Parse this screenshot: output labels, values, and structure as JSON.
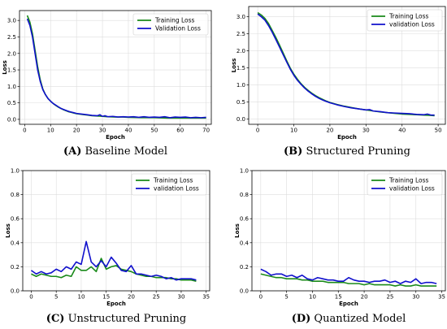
{
  "colors": {
    "training": "#1a8a1a",
    "validation": "#1010cc",
    "grid": "#dddddd",
    "frame": "#000000"
  },
  "chart_data": [
    {
      "type": "line",
      "caption_letter": "(A)",
      "caption_text": " Baseline Model",
      "xlabel": "Epoch",
      "ylabel": "Loss",
      "xlim": [
        -2,
        72
      ],
      "ylim": [
        -0.15,
        3.3
      ],
      "xticks": [
        0,
        10,
        20,
        30,
        40,
        50,
        60,
        70
      ],
      "yticks": [
        0.0,
        0.5,
        1.0,
        1.5,
        2.0,
        2.5,
        3.0
      ],
      "ytick_labels": [
        "0.0",
        "0.5",
        "1.0",
        "1.5",
        "2.0",
        "2.5",
        "3.0"
      ],
      "legend_position": "top-right",
      "grid": true,
      "series": [
        {
          "name": "Training Loss",
          "color_key": "training",
          "x": [
            1,
            2,
            3,
            4,
            5,
            6,
            7,
            8,
            9,
            10,
            11,
            12,
            13,
            14,
            15,
            16,
            17,
            18,
            19,
            20,
            22,
            24,
            26,
            28,
            30,
            32,
            35,
            38,
            40,
            45,
            50,
            55,
            60,
            65,
            70
          ],
          "y": [
            3.15,
            2.95,
            2.6,
            2.1,
            1.6,
            1.2,
            0.92,
            0.75,
            0.63,
            0.55,
            0.48,
            0.42,
            0.37,
            0.33,
            0.29,
            0.26,
            0.23,
            0.21,
            0.19,
            0.17,
            0.15,
            0.13,
            0.11,
            0.1,
            0.09,
            0.08,
            0.07,
            0.07,
            0.06,
            0.05,
            0.05,
            0.04,
            0.04,
            0.04,
            0.04
          ]
        },
        {
          "name": "Validation Loss",
          "color_key": "validation",
          "x": [
            1,
            2,
            3,
            4,
            5,
            6,
            7,
            8,
            9,
            10,
            11,
            12,
            13,
            14,
            15,
            16,
            17,
            18,
            19,
            20,
            22,
            24,
            26,
            28,
            29,
            30,
            31,
            32,
            34,
            36,
            38,
            40,
            42,
            44,
            46,
            48,
            50,
            52,
            54,
            56,
            58,
            60,
            62,
            64,
            66,
            68,
            70
          ],
          "y": [
            3.05,
            2.85,
            2.5,
            2.0,
            1.5,
            1.15,
            0.9,
            0.75,
            0.63,
            0.55,
            0.48,
            0.43,
            0.38,
            0.33,
            0.3,
            0.27,
            0.24,
            0.22,
            0.2,
            0.18,
            0.16,
            0.14,
            0.12,
            0.11,
            0.14,
            0.09,
            0.11,
            0.08,
            0.09,
            0.07,
            0.08,
            0.07,
            0.08,
            0.06,
            0.08,
            0.06,
            0.07,
            0.06,
            0.08,
            0.05,
            0.07,
            0.06,
            0.07,
            0.05,
            0.06,
            0.05,
            0.06
          ]
        }
      ]
    },
    {
      "type": "line",
      "caption_letter": "(B)",
      "caption_text": " Structured Pruning",
      "xlabel": "Epoch",
      "ylabel": "Loss",
      "xlim": [
        -2.5,
        52
      ],
      "ylim": [
        -0.15,
        3.3
      ],
      "xticks": [
        0,
        10,
        20,
        30,
        40,
        50
      ],
      "yticks": [
        0.0,
        0.5,
        1.0,
        1.5,
        2.0,
        2.5,
        3.0
      ],
      "ytick_labels": [
        "0.0",
        "0.5",
        "1.0",
        "1.5",
        "2.0",
        "2.5",
        "3.0"
      ],
      "legend_position": "top-right",
      "grid": true,
      "series": [
        {
          "name": "Training Loss",
          "color_key": "training",
          "x": [
            0,
            1,
            2,
            3,
            4,
            5,
            6,
            7,
            8,
            9,
            10,
            11,
            12,
            13,
            14,
            15,
            16,
            17,
            18,
            19,
            20,
            22,
            24,
            26,
            28,
            30,
            32,
            34,
            36,
            38,
            40,
            42,
            44,
            46,
            48,
            49
          ],
          "y": [
            3.12,
            3.05,
            2.95,
            2.8,
            2.6,
            2.4,
            2.18,
            1.95,
            1.72,
            1.5,
            1.32,
            1.17,
            1.04,
            0.93,
            0.84,
            0.76,
            0.69,
            0.63,
            0.58,
            0.53,
            0.49,
            0.43,
            0.38,
            0.34,
            0.3,
            0.27,
            0.24,
            0.21,
            0.19,
            0.17,
            0.15,
            0.14,
            0.13,
            0.12,
            0.11,
            0.1
          ]
        },
        {
          "name": "validation Loss",
          "color_key": "validation",
          "x": [
            0,
            1,
            2,
            3,
            4,
            5,
            6,
            7,
            8,
            9,
            10,
            11,
            12,
            13,
            14,
            15,
            16,
            17,
            18,
            19,
            20,
            22,
            24,
            26,
            28,
            30,
            31,
            32,
            34,
            36,
            38,
            40,
            42,
            44,
            46,
            47,
            48,
            49
          ],
          "y": [
            3.08,
            3.0,
            2.9,
            2.74,
            2.55,
            2.34,
            2.12,
            1.9,
            1.68,
            1.47,
            1.29,
            1.14,
            1.02,
            0.91,
            0.82,
            0.74,
            0.67,
            0.61,
            0.56,
            0.52,
            0.48,
            0.42,
            0.37,
            0.33,
            0.3,
            0.27,
            0.28,
            0.24,
            0.22,
            0.19,
            0.18,
            0.17,
            0.16,
            0.14,
            0.13,
            0.15,
            0.12,
            0.12
          ]
        }
      ]
    },
    {
      "type": "line",
      "caption_letter": "(C)",
      "caption_text": " Unstructured Pruning",
      "xlabel": "Epoch",
      "ylabel": "Loss",
      "xlim": [
        -1.7,
        35.7
      ],
      "ylim": [
        0.0,
        1.0
      ],
      "xticks": [
        0,
        5,
        10,
        15,
        20,
        25,
        30,
        35
      ],
      "yticks": [
        0.0,
        0.2,
        0.4,
        0.6,
        0.8,
        1.0
      ],
      "ytick_labels": [
        "0.0",
        "0.2",
        "0.4",
        "0.6",
        "0.8",
        "1.0"
      ],
      "legend_position": "top-right",
      "grid": true,
      "series": [
        {
          "name": "Training Loss",
          "color_key": "training",
          "x": [
            0,
            1,
            2,
            3,
            4,
            5,
            6,
            7,
            8,
            9,
            10,
            11,
            12,
            13,
            14,
            15,
            16,
            17,
            18,
            19,
            20,
            21,
            22,
            23,
            24,
            25,
            26,
            27,
            28,
            29,
            30,
            31,
            32,
            33
          ],
          "y": [
            0.14,
            0.12,
            0.14,
            0.13,
            0.12,
            0.12,
            0.11,
            0.13,
            0.12,
            0.2,
            0.17,
            0.17,
            0.2,
            0.16,
            0.27,
            0.18,
            0.2,
            0.21,
            0.18,
            0.17,
            0.16,
            0.14,
            0.13,
            0.12,
            0.12,
            0.11,
            0.11,
            0.11,
            0.1,
            0.1,
            0.09,
            0.09,
            0.09,
            0.08
          ]
        },
        {
          "name": "validation Loss",
          "color_key": "validation",
          "x": [
            0,
            1,
            2,
            3,
            4,
            5,
            6,
            7,
            8,
            9,
            10,
            11,
            12,
            13,
            14,
            15,
            16,
            17,
            18,
            19,
            20,
            21,
            22,
            23,
            24,
            25,
            26,
            27,
            28,
            29,
            30,
            31,
            32,
            33
          ],
          "y": [
            0.17,
            0.14,
            0.16,
            0.14,
            0.15,
            0.18,
            0.16,
            0.2,
            0.18,
            0.24,
            0.22,
            0.41,
            0.24,
            0.2,
            0.25,
            0.2,
            0.28,
            0.23,
            0.17,
            0.16,
            0.21,
            0.14,
            0.14,
            0.13,
            0.12,
            0.13,
            0.12,
            0.1,
            0.11,
            0.09,
            0.1,
            0.1,
            0.1,
            0.09
          ]
        }
      ]
    },
    {
      "type": "line",
      "caption_letter": "(D)",
      "caption_text": " Quantized Model",
      "xlabel": "Epoch",
      "ylabel": "Loss",
      "xlim": [
        -1.7,
        35.7
      ],
      "ylim": [
        0.0,
        1.0
      ],
      "xticks": [
        0,
        5,
        10,
        15,
        20,
        25,
        30,
        35
      ],
      "yticks": [
        0.0,
        0.2,
        0.4,
        0.6,
        0.8,
        1.0
      ],
      "ytick_labels": [
        "0.0",
        "0.2",
        "0.4",
        "0.6",
        "0.8",
        "1.0"
      ],
      "legend_position": "top-right",
      "grid": true,
      "series": [
        {
          "name": "Training Loss",
          "color_key": "training",
          "x": [
            0,
            1,
            2,
            3,
            4,
            5,
            6,
            7,
            8,
            9,
            10,
            11,
            12,
            13,
            14,
            15,
            16,
            17,
            18,
            19,
            20,
            21,
            22,
            23,
            24,
            25,
            26,
            27,
            28,
            29,
            30,
            31,
            32,
            33,
            34
          ],
          "y": [
            0.14,
            0.13,
            0.12,
            0.11,
            0.11,
            0.1,
            0.1,
            0.1,
            0.09,
            0.09,
            0.08,
            0.08,
            0.08,
            0.07,
            0.07,
            0.07,
            0.07,
            0.06,
            0.06,
            0.06,
            0.05,
            0.06,
            0.05,
            0.05,
            0.05,
            0.05,
            0.04,
            0.05,
            0.04,
            0.04,
            0.05,
            0.04,
            0.04,
            0.04,
            0.04
          ]
        },
        {
          "name": "validation Loss",
          "color_key": "validation",
          "x": [
            0,
            1,
            2,
            3,
            4,
            5,
            6,
            7,
            8,
            9,
            10,
            11,
            12,
            13,
            14,
            15,
            16,
            17,
            18,
            19,
            20,
            21,
            22,
            23,
            24,
            25,
            26,
            27,
            28,
            29,
            30,
            31,
            32,
            33,
            34
          ],
          "y": [
            0.18,
            0.16,
            0.13,
            0.14,
            0.14,
            0.12,
            0.13,
            0.11,
            0.13,
            0.1,
            0.09,
            0.11,
            0.1,
            0.09,
            0.09,
            0.08,
            0.08,
            0.11,
            0.09,
            0.08,
            0.08,
            0.07,
            0.08,
            0.08,
            0.09,
            0.07,
            0.08,
            0.06,
            0.08,
            0.07,
            0.1,
            0.06,
            0.07,
            0.07,
            0.06
          ]
        }
      ]
    }
  ]
}
